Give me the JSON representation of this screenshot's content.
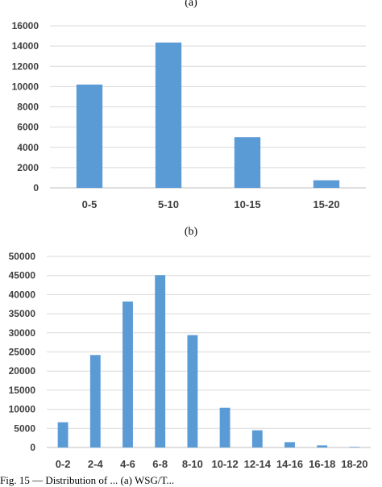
{
  "chart_data": [
    {
      "type": "bar",
      "title": "(a)",
      "categories": [
        "0-5",
        "5-10",
        "10-15",
        "15-20"
      ],
      "values": [
        10200,
        14350,
        5000,
        750
      ],
      "ylim": [
        0,
        16000
      ],
      "yticks": [
        0,
        2000,
        4000,
        6000,
        8000,
        10000,
        12000,
        14000,
        16000
      ],
      "grid": true,
      "color": "#5b9bd5"
    },
    {
      "type": "bar",
      "title": "(b)",
      "categories": [
        "0-2",
        "2-4",
        "4-6",
        "6-8",
        "8-10",
        "10-12",
        "12-14",
        "14-16",
        "16-18",
        "18-20"
      ],
      "values": [
        6600,
        24200,
        38200,
        45100,
        29400,
        10400,
        4500,
        1400,
        550,
        150
      ],
      "ylim": [
        0,
        50000
      ],
      "yticks": [
        0,
        5000,
        10000,
        15000,
        20000,
        25000,
        30000,
        35000,
        40000,
        45000,
        50000
      ],
      "grid": true,
      "color": "#5b9bd5"
    }
  ],
  "caption": "Fig. 15 — Distribution of ... (a) WSG/T..."
}
